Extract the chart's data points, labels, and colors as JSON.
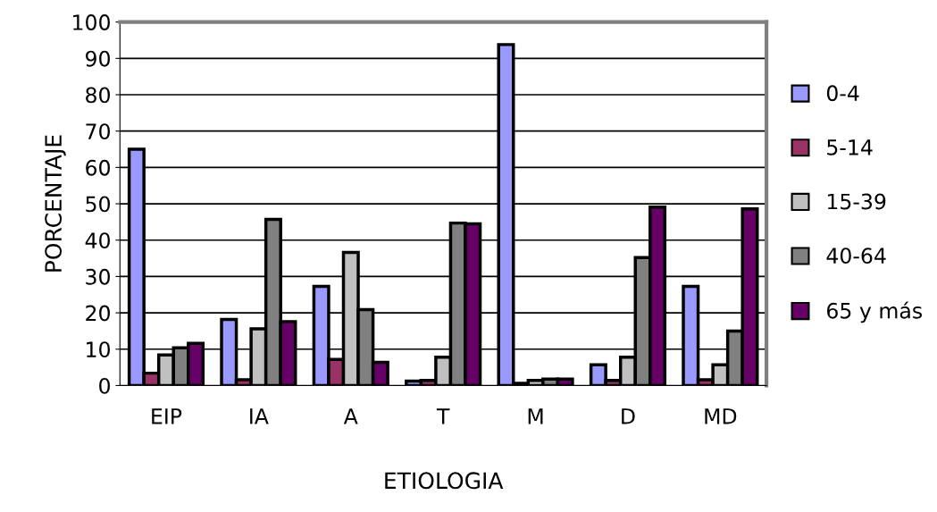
{
  "chart_data": {
    "type": "bar",
    "xlabel": "ETIOLOGIA",
    "ylabel": "PORCENTAJE",
    "categories": [
      "EIP",
      "IA",
      "A",
      "T",
      "M",
      "D",
      "MD"
    ],
    "series": [
      {
        "name": "0-4",
        "color": "#9999ff",
        "values": [
          65,
          18.2,
          27.3,
          1.2,
          93.8,
          5.7,
          27.3
        ]
      },
      {
        "name": "5-14",
        "color": "#993366",
        "values": [
          3.4,
          1.6,
          7.2,
          1.4,
          0.6,
          1.4,
          1.6
        ]
      },
      {
        "name": "15-39",
        "color": "#c0c0c0",
        "values": [
          8.4,
          15.6,
          36.6,
          7.8,
          1.4,
          7.8,
          5.7
        ]
      },
      {
        "name": "40-64",
        "color": "#808080",
        "values": [
          10.4,
          45.7,
          20.9,
          44.7,
          1.8,
          35.2,
          15
        ]
      },
      {
        "name": "65 y más",
        "color": "#660066",
        "values": [
          11.6,
          17.6,
          6.4,
          44.5,
          1.8,
          49.1,
          48.6
        ]
      }
    ],
    "ylim": [
      0,
      100
    ],
    "yticks": [
      0,
      10,
      20,
      30,
      40,
      50,
      60,
      70,
      80,
      90,
      100
    ],
    "grid": "y",
    "legend": "right"
  }
}
